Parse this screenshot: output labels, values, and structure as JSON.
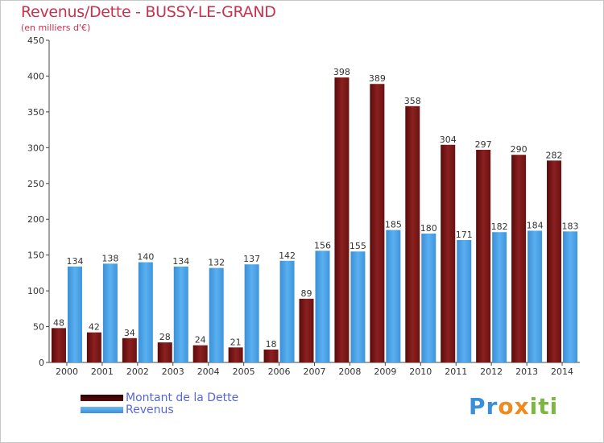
{
  "header": {
    "title": "Revenus/Dette - BUSSY-LE-GRAND",
    "subtitle": "(en milliers d'€)"
  },
  "legend": {
    "debt_label": "Montant de la Dette",
    "revenue_label": "Revenus"
  },
  "logo": {
    "part1": "Pr",
    "part2": "o",
    "part3": "x",
    "part4": "i",
    "part5": "ti"
  },
  "colors": {
    "title": "#c8324f",
    "debt_bar": "#8b1a1a",
    "revenue_bar": "#4aa3e8",
    "legend_text": "#5566dd"
  },
  "chart_data": {
    "type": "bar",
    "title": "Revenus/Dette - BUSSY-LE-GRAND",
    "subtitle": "(en milliers d'€)",
    "categories": [
      "2000",
      "2001",
      "2002",
      "2003",
      "2004",
      "2005",
      "2006",
      "2007",
      "2008",
      "2009",
      "2010",
      "2011",
      "2012",
      "2013",
      "2014"
    ],
    "series": [
      {
        "name": "Montant de la Dette",
        "values": [
          48,
          42,
          34,
          28,
          24,
          21,
          18,
          89,
          398,
          389,
          358,
          304,
          297,
          290,
          282
        ]
      },
      {
        "name": "Revenus",
        "values": [
          134,
          138,
          140,
          134,
          132,
          137,
          142,
          156,
          155,
          185,
          180,
          171,
          182,
          184,
          183
        ]
      }
    ],
    "ylim": [
      0,
      450
    ],
    "yticks": [
      0,
      50,
      100,
      150,
      200,
      250,
      300,
      350,
      400,
      450
    ],
    "grid": false,
    "legend_position": "bottom-left"
  }
}
